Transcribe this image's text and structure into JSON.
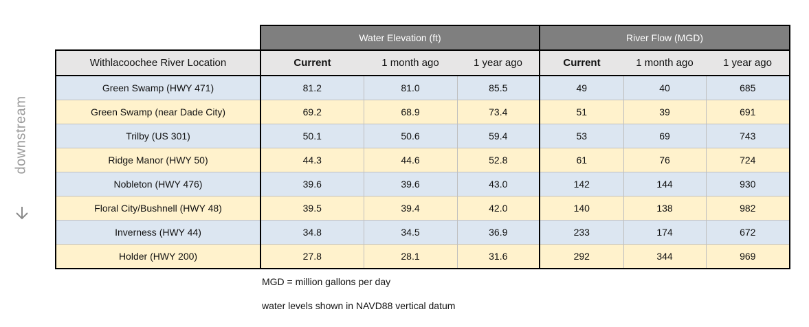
{
  "chart_data": {
    "type": "table",
    "side_label": "downstream",
    "groups": [
      {
        "label": "Water Elevation (ft)"
      },
      {
        "label": "River Flow (MGD)"
      }
    ],
    "location_header": "Withlacoochee River Location",
    "columns": [
      "Current",
      "1 month ago",
      "1 year ago",
      "Current",
      "1 month ago",
      "1 year ago"
    ],
    "rows": [
      {
        "location": "Green Swamp (HWY 471)",
        "values": [
          "81.2",
          "81.0",
          "85.5",
          "49",
          "40",
          "685"
        ]
      },
      {
        "location": "Green Swamp (near Dade City)",
        "values": [
          "69.2",
          "68.9",
          "73.4",
          "51",
          "39",
          "691"
        ]
      },
      {
        "location": "Trilby (US 301)",
        "values": [
          "50.1",
          "50.6",
          "59.4",
          "53",
          "69",
          "743"
        ]
      },
      {
        "location": "Ridge Manor (HWY 50)",
        "values": [
          "44.3",
          "44.6",
          "52.8",
          "61",
          "76",
          "724"
        ]
      },
      {
        "location": "Nobleton (HWY 476)",
        "values": [
          "39.6",
          "39.6",
          "43.0",
          "142",
          "144",
          "930"
        ]
      },
      {
        "location": "Floral City/Bushnell (HWY 48)",
        "values": [
          "39.5",
          "39.4",
          "42.0",
          "140",
          "138",
          "982"
        ]
      },
      {
        "location": "Inverness (HWY 44)",
        "values": [
          "34.8",
          "34.5",
          "36.9",
          "233",
          "174",
          "672"
        ]
      },
      {
        "location": "Holder (HWY 200)",
        "values": [
          "27.8",
          "28.1",
          "31.6",
          "292",
          "344",
          "969"
        ]
      }
    ],
    "notes": [
      "MGD = million gallons per day",
      "water levels shown in NAVD88 vertical datum"
    ],
    "colors": {
      "group_header": "#7f7f7f",
      "column_header": "#e7e6e6",
      "row_blue": "#dce6f1",
      "row_cream": "#fff2cc",
      "side_label": "#9a9a9a"
    },
    "icons": {
      "side_arrow": "down-arrow-icon"
    }
  }
}
